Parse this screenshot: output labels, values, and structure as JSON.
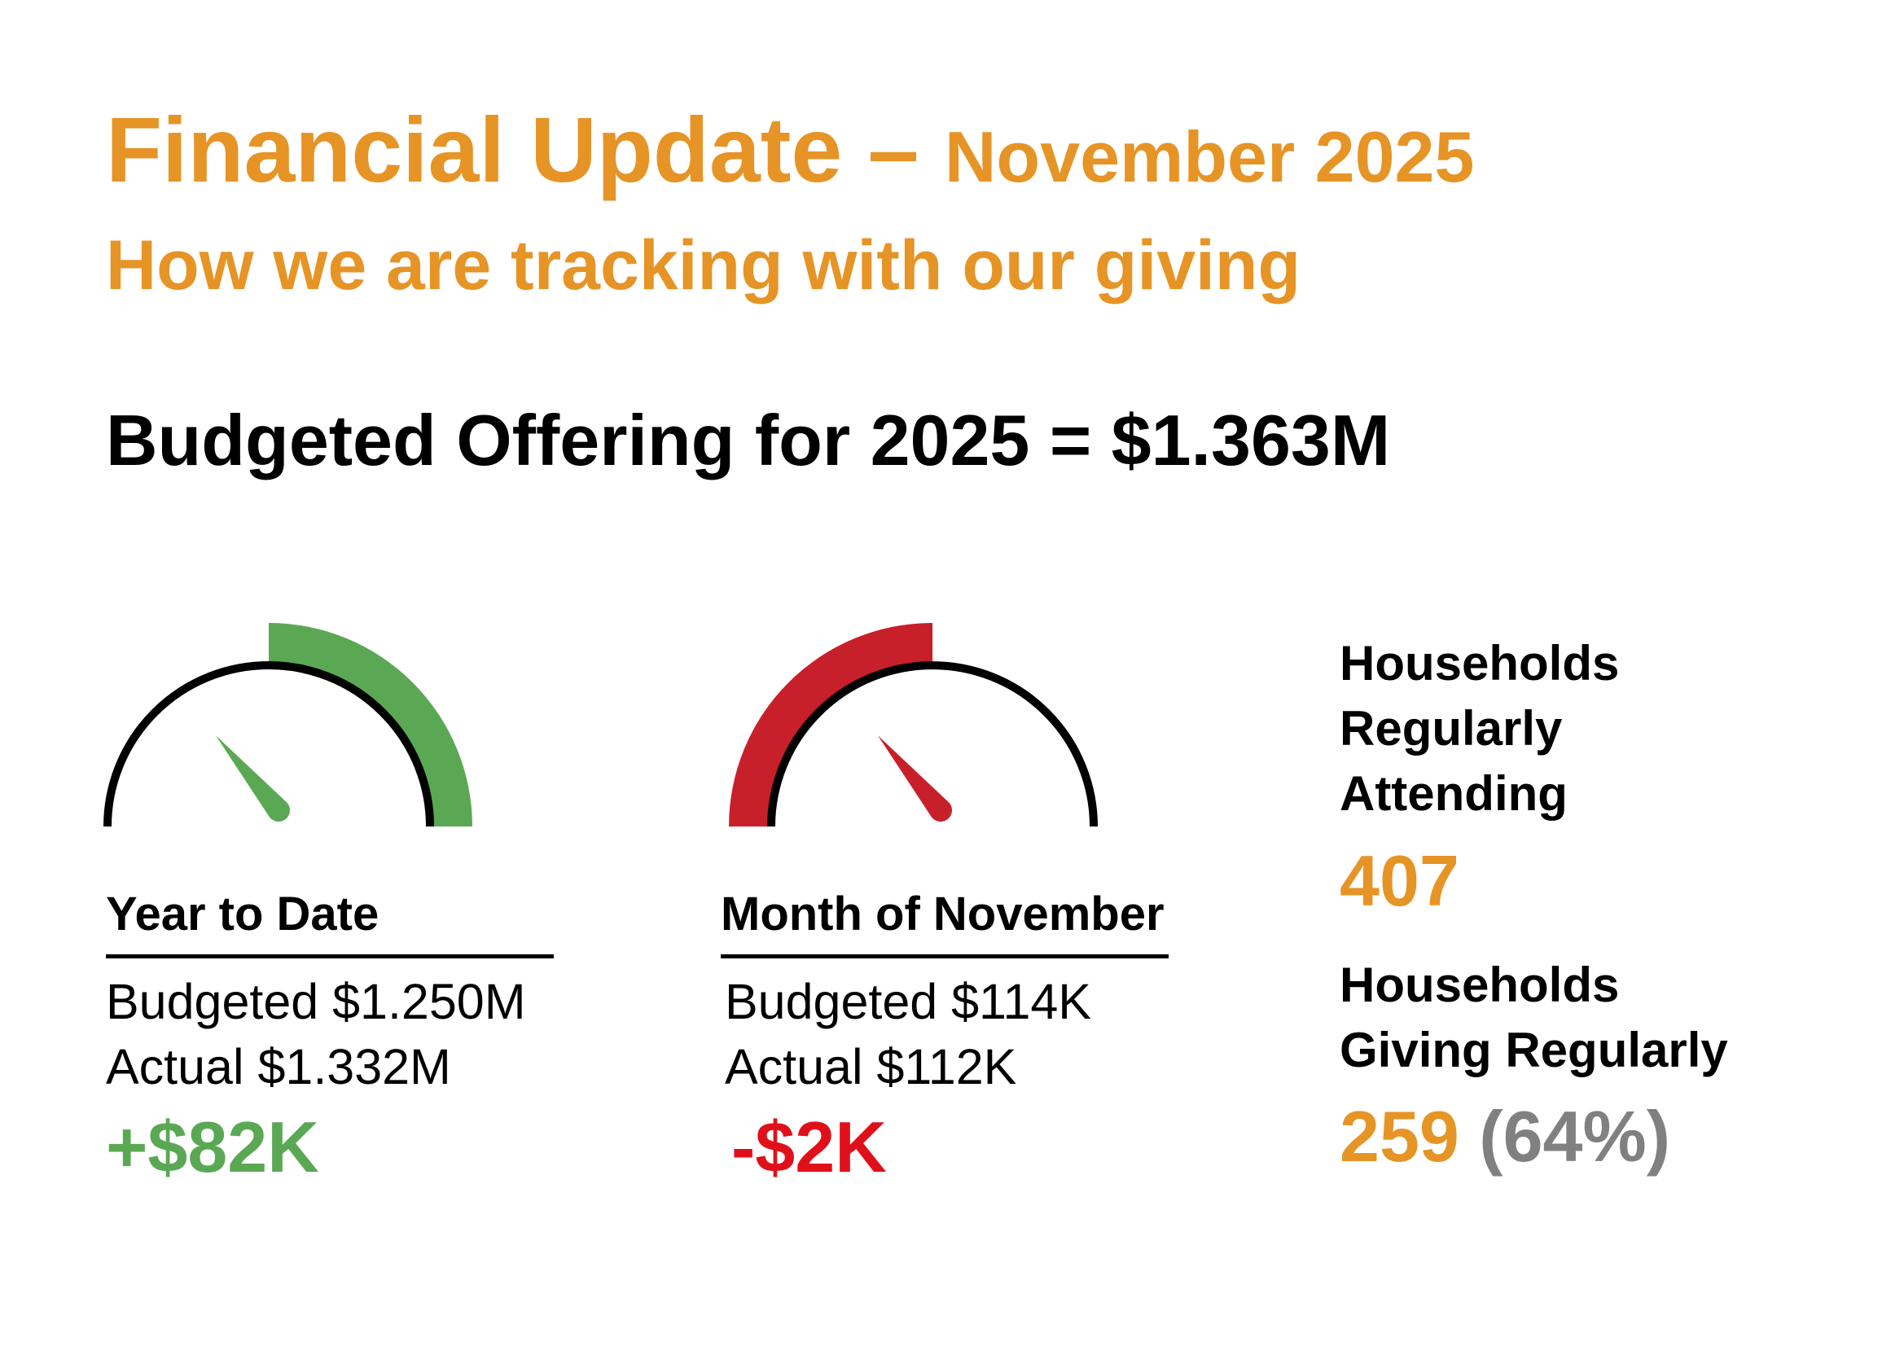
{
  "header": {
    "title": "Financial Update",
    "dash": "–",
    "month": "November 2025",
    "subtitle": "How we are tracking with our giving"
  },
  "budget_line": "Budgeted Offering for 2025 = $1.363M",
  "colors": {
    "accent": "#E69426",
    "positive": "#5BA854",
    "negative": "#E0101A",
    "negative_gauge": "#C8202A",
    "muted": "#808080"
  },
  "ytd": {
    "heading": "Year to Date",
    "budgeted": "Budgeted $1.250M",
    "actual": "Actual $1.332M",
    "variance": "+$82K",
    "gauge_icon": "speedometer-green-icon"
  },
  "month": {
    "heading": "Month of November",
    "budgeted": "Budgeted $114K",
    "actual": "Actual $112K",
    "variance": "-$2K",
    "gauge_icon": "speedometer-red-icon"
  },
  "households": {
    "attending_label_1": "Households",
    "attending_label_2": "Regularly",
    "attending_label_3": "Attending",
    "attending_value": "407",
    "giving_label_1": "Households",
    "giving_label_2": "Giving Regularly",
    "giving_value": "259",
    "giving_percent": "(64%)"
  }
}
